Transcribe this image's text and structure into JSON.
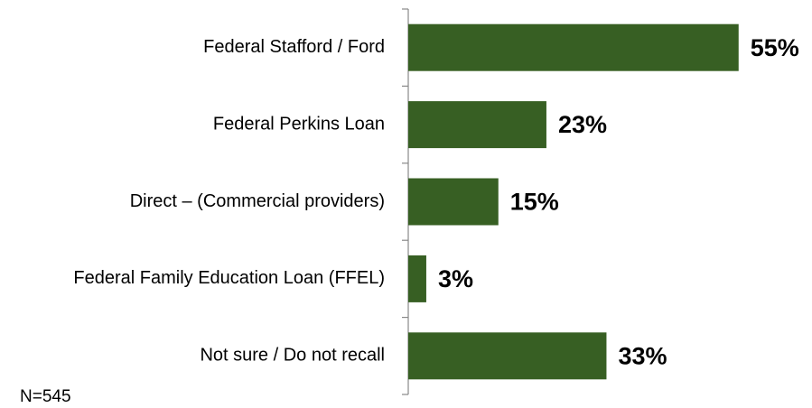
{
  "chart_data": {
    "type": "bar",
    "orientation": "horizontal",
    "categories": [
      "Federal Stafford / Ford",
      "Federal Perkins Loan",
      "Direct – (Commercial providers)",
      "Federal Family Education Loan (FFEL)",
      "Not sure / Do not recall"
    ],
    "values": [
      55,
      23,
      15,
      3,
      33
    ],
    "value_labels": [
      "55%",
      "23%",
      "15%",
      "3%",
      "33%"
    ],
    "color": "#375f23",
    "note": "N=545"
  }
}
